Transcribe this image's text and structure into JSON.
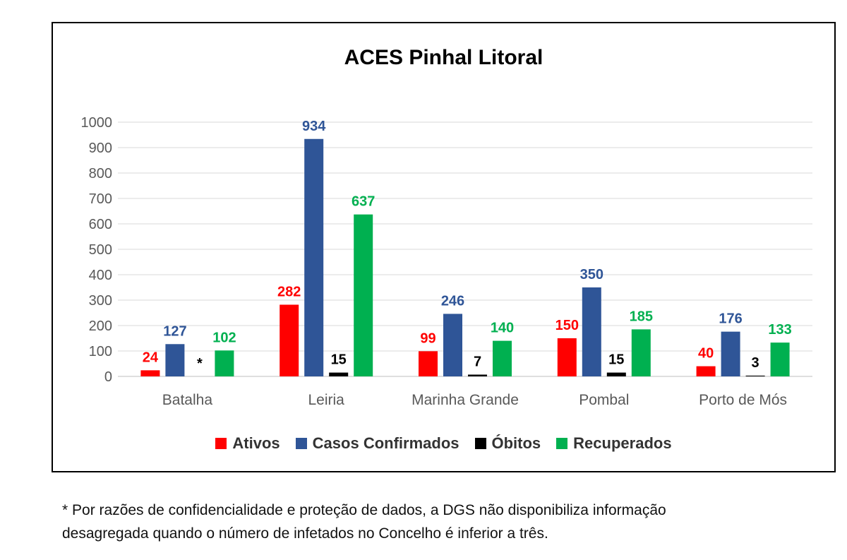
{
  "chart_data": {
    "type": "bar",
    "title": "ACES Pinhal Litoral",
    "categories": [
      "Batalha",
      "Leiria",
      "Marinha Grande",
      "Pombal",
      "Porto de Mós"
    ],
    "series": [
      {
        "name": "Ativos",
        "color": "#ff0000",
        "values": [
          24,
          282,
          99,
          150,
          40
        ],
        "labels": [
          "24",
          "282",
          "99",
          "150",
          "40"
        ],
        "label_color": "#ff0000"
      },
      {
        "name": "Casos Confirmados",
        "color": "#2f5597",
        "values": [
          127,
          934,
          246,
          350,
          176
        ],
        "labels": [
          "127",
          "934",
          "246",
          "350",
          "176"
        ],
        "label_color": "#2f5597"
      },
      {
        "name": "Óbitos",
        "color": "#000000",
        "values": [
          0,
          15,
          7,
          15,
          3
        ],
        "labels": [
          "*",
          "15",
          "7",
          "15",
          "3"
        ],
        "label_color": "#000000"
      },
      {
        "name": "Recuperados",
        "color": "#00b050",
        "values": [
          102,
          637,
          140,
          185,
          133
        ],
        "labels": [
          "102",
          "637",
          "140",
          "185",
          "133"
        ],
        "label_color": "#00b050"
      }
    ],
    "yticks": [
      "0",
      "100",
      "200",
      "300",
      "400",
      "500",
      "600",
      "700",
      "800",
      "900",
      "1000"
    ],
    "ylim": [
      0,
      1000
    ],
    "grid": true,
    "legend_position": "bottom"
  },
  "footnote": {
    "line1": "* Por razões de confidencialidade e proteção de dados, a DGS não disponibiliza informação",
    "line2": "desagregada quando o número de infetados no Concelho é inferior a três."
  }
}
